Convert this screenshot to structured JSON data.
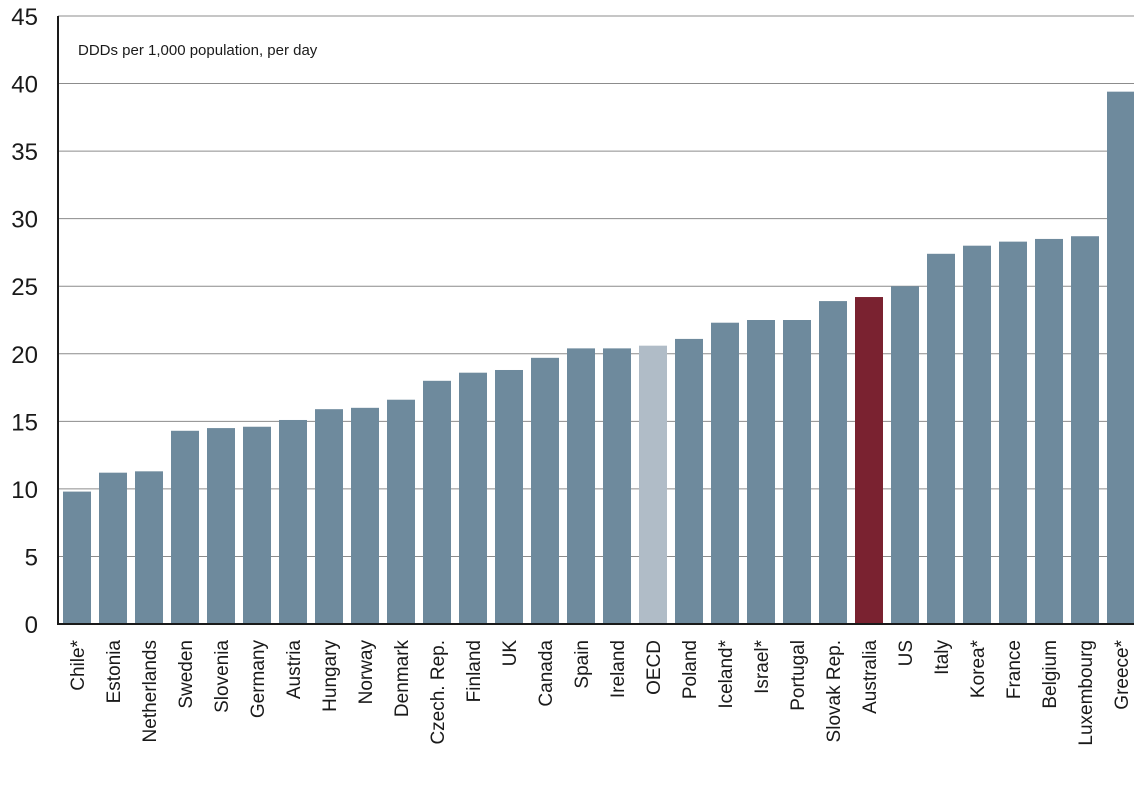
{
  "chart_data": {
    "type": "bar",
    "title": "",
    "subtitle": "DDDs per 1,000 population, per day",
    "xlabel": "",
    "ylabel": "",
    "ylim": [
      0,
      45
    ],
    "yticks": [
      0,
      5,
      10,
      15,
      20,
      25,
      30,
      35,
      40,
      45
    ],
    "grid": true,
    "legend": "none",
    "categories": [
      "Chile*",
      "Estonia",
      "Netherlands",
      "Sweden",
      "Slovenia",
      "Germany",
      "Austria",
      "Hungary",
      "Norway",
      "Denmark",
      "Czech. Rep.",
      "Finland",
      "UK",
      "Canada",
      "Spain",
      "Ireland",
      "OECD",
      "Poland",
      "Iceland*",
      "Israel*",
      "Portugal",
      "Slovak Rep.",
      "Australia",
      "US",
      "Italy",
      "Korea*",
      "France",
      "Belgium",
      "Luxembourg",
      "Greece*"
    ],
    "values": [
      9.8,
      11.2,
      11.3,
      14.3,
      14.5,
      14.6,
      15.1,
      15.9,
      16.0,
      16.6,
      18.0,
      18.6,
      18.8,
      19.7,
      20.4,
      20.4,
      20.6,
      21.1,
      22.3,
      22.5,
      22.5,
      23.9,
      24.2,
      25.0,
      27.4,
      28.0,
      28.3,
      28.5,
      28.7,
      39.4
    ],
    "colors": {
      "default": "#6e8a9d",
      "OECD": "#b0bcc7",
      "Australia": "#7a2230",
      "grid": "#8c8c8c",
      "axis": "#1a1a1a"
    }
  }
}
